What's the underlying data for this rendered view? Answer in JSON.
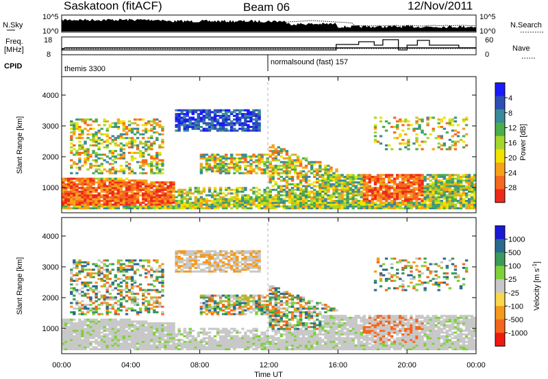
{
  "header": {
    "station": "Saskatoon (fitACF)",
    "beam": "Beam 06",
    "date": "12/Nov/2011"
  },
  "top_panel": {
    "left_label": "N.Sky",
    "left_ticks": [
      "10^5",
      "10^0"
    ],
    "right_label": "N.Search",
    "right_ticks": [
      "10^5",
      "10^0"
    ]
  },
  "freq_panel": {
    "left_label_line1": "Freq.",
    "left_label_line2": "[MHz]",
    "left_ticks": [
      "18",
      "8"
    ],
    "right_label": "Nave",
    "right_ticks": [
      "60",
      "0"
    ]
  },
  "cpid": {
    "label": "CPID",
    "segments": [
      {
        "name": "themis 3300",
        "start_hour": 0
      },
      {
        "name": "normalsound (fast) 157",
        "start_hour": 12
      }
    ]
  },
  "chart_data": [
    {
      "type": "heatmap",
      "id": "power",
      "title": "",
      "xlabel": "Time UT",
      "ylabel": "Slant Range [km]",
      "xlim": [
        0,
        24
      ],
      "ylim": [
        180,
        4600
      ],
      "y_ticks": [
        "1000",
        "2000",
        "3000",
        "4000"
      ],
      "x_ticks": [
        "00:00",
        "04:00",
        "08:00",
        "12:00",
        "16:00",
        "20:00",
        "00:00"
      ],
      "colorbar": {
        "label": "Power [dB]",
        "ticks": [
          "4",
          "8",
          "12",
          "16",
          "20",
          "24",
          "28"
        ],
        "colors": [
          "#1a1aff",
          "#2e4fb5",
          "#3a8a9a",
          "#4cad4c",
          "#a6d62d",
          "#f2e200",
          "#f6a21c",
          "#f56a1e",
          "#ef2a1a"
        ]
      }
    },
    {
      "type": "heatmap",
      "id": "velocity",
      "title": "",
      "xlabel": "Time UT",
      "ylabel": "Slant Range [km]",
      "xlim": [
        0,
        24
      ],
      "ylim": [
        180,
        4600
      ],
      "y_ticks": [
        "1000",
        "2000",
        "3000",
        "4000"
      ],
      "x_ticks": [
        "00:00",
        "04:00",
        "08:00",
        "12:00",
        "16:00",
        "20:00",
        "00:00"
      ],
      "colorbar": {
        "label": "Velocity [m s",
        "label_sup": "-1",
        "label_end": "]",
        "ticks": [
          "1000",
          "500",
          "100",
          "25",
          "-25",
          "-100",
          "-500",
          "-1000"
        ],
        "colors": [
          "#1a1ad6",
          "#2a6a8f",
          "#3c9a5a",
          "#7ed13a",
          "#c8c8c8",
          "#f7d84a",
          "#f59a1c",
          "#f5661c",
          "#ef1a10"
        ]
      }
    }
  ],
  "colors": {
    "ground_scatter": "#c8c8c8",
    "axes": "#000000",
    "divider": "#b0b0b0"
  }
}
